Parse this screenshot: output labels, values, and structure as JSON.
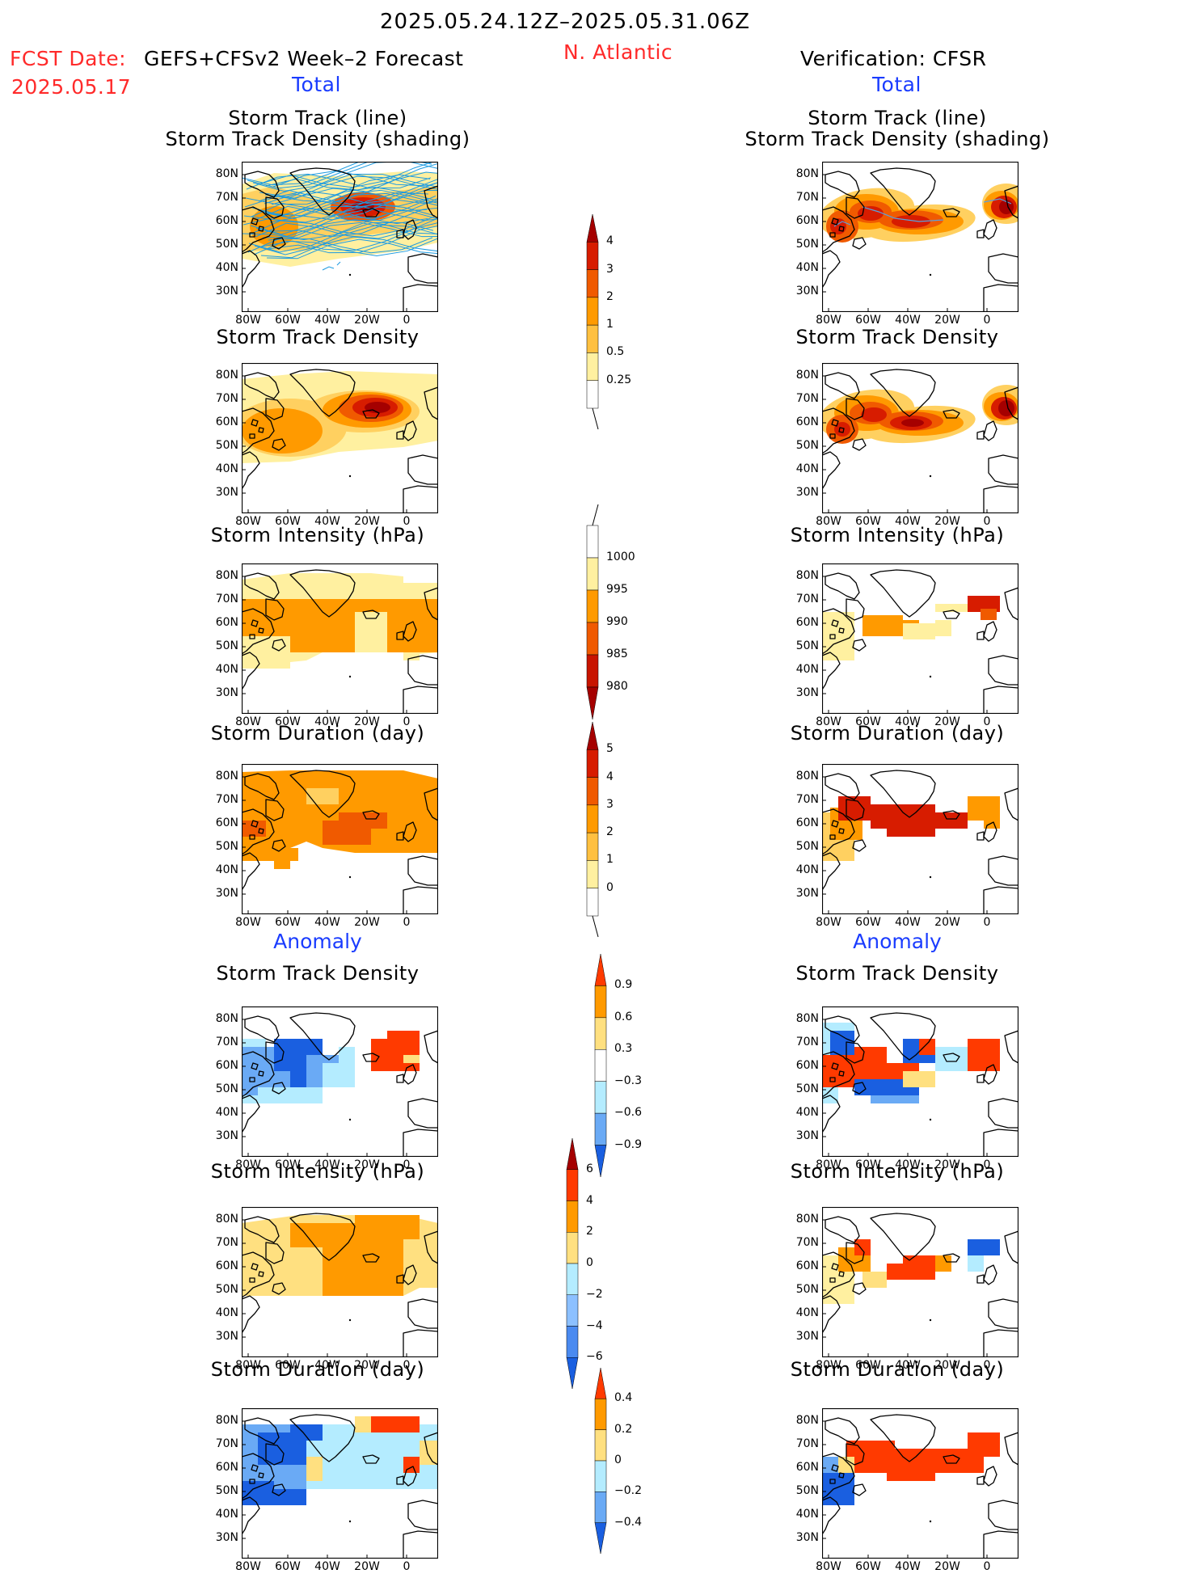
{
  "header": {
    "date_range": "2025.05.24.12Z–2025.05.31.06Z",
    "region": "N. Atlantic",
    "fcst_date_label": "FCST Date:",
    "fcst_date": "2025.05.17",
    "forecast_label": "GEFS+CFSv2 Week–2 Forecast",
    "verification_label": "Verification: CFSR"
  },
  "sections": {
    "total": "Total",
    "anomaly": "Anomaly"
  },
  "panel_titles": {
    "track_line": "Storm Track (line)",
    "track_density_shading": "Storm Track Density (shading)",
    "track_density": "Storm Track Density",
    "intensity": "Storm Intensity (hPa)",
    "duration": "Storm Duration (day)"
  },
  "axes": {
    "lat_labels": [
      "80N",
      "70N",
      "60N",
      "50N",
      "40N",
      "30N"
    ],
    "lon_labels": [
      "80W",
      "60W",
      "40W",
      "20W",
      "0"
    ]
  },
  "colorbars": {
    "density_total": {
      "labels": [
        "4",
        "3",
        "2",
        "1",
        "0.5",
        "0.25"
      ],
      "colors": [
        "#a50000",
        "#d71c00",
        "#f05a00",
        "#ff9a00",
        "#ffc040",
        "#fff0a0",
        "#ffffff"
      ]
    },
    "intensity_total": {
      "labels": [
        "1000",
        "995",
        "990",
        "985",
        "980"
      ],
      "colors": [
        "#ffffff",
        "#fff0a0",
        "#ff9a00",
        "#f05a00",
        "#c81400",
        "#a50000"
      ]
    },
    "duration_total": {
      "labels": [
        "5",
        "4",
        "3",
        "2",
        "1",
        "0"
      ],
      "colors": [
        "#a50000",
        "#d71c00",
        "#f05a00",
        "#ff9a00",
        "#ffc040",
        "#fff0a0",
        "#ffffff"
      ]
    },
    "density_anom": {
      "labels": [
        "0.9",
        "0.6",
        "0.3",
        "−0.3",
        "−0.6",
        "−0.9"
      ],
      "colors": [
        "#ff3a00",
        "#ff9a00",
        "#ffe080",
        "#ffffff",
        "#b4ecff",
        "#6aaaf5",
        "#1a5fe0"
      ]
    },
    "intensity_anom": {
      "labels": [
        "6",
        "4",
        "2",
        "0",
        "−2",
        "−4",
        "−6"
      ],
      "colors": [
        "#a50000",
        "#ff3a00",
        "#ff9a00",
        "#ffe080",
        "#b4ecff",
        "#8cc0ff",
        "#4a8af0",
        "#1a5fe0"
      ]
    },
    "duration_anom": {
      "labels": [
        "0.4",
        "0.2",
        "0",
        "−0.2",
        "−0.4"
      ],
      "colors": [
        "#ff3a00",
        "#ff9a00",
        "#ffe080",
        "#b4ecff",
        "#6aaaf5",
        "#1a5fe0"
      ]
    }
  }
}
